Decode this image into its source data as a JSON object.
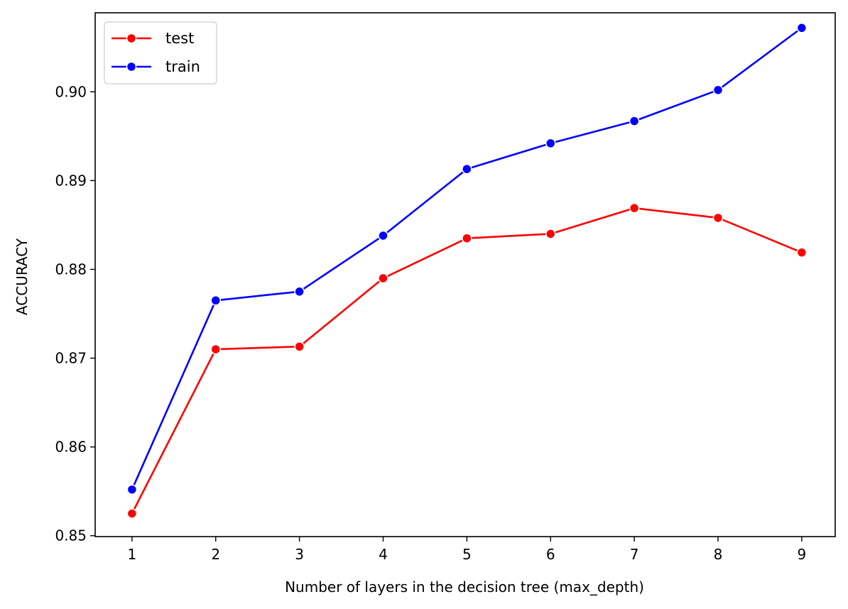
{
  "chart_data": {
    "type": "line",
    "title": "",
    "xlabel": "Number of layers in the decision tree (max_depth)",
    "ylabel": "ACCURACY",
    "x": [
      1,
      2,
      3,
      4,
      5,
      6,
      7,
      8,
      9
    ],
    "xticks": [
      "1",
      "2",
      "3",
      "4",
      "5",
      "6",
      "7",
      "8",
      "9"
    ],
    "xlim": [
      0.56,
      9.4
    ],
    "yticks": [
      "0.85",
      "0.86",
      "0.87",
      "0.88",
      "0.89",
      "0.90"
    ],
    "ytick_values": [
      0.85,
      0.86,
      0.87,
      0.88,
      0.89,
      0.9
    ],
    "ylim": [
      0.8499,
      0.9089
    ],
    "grid": false,
    "legend_position": "top-left",
    "series": [
      {
        "name": "test",
        "color": "#ff0000",
        "values": [
          0.8525,
          0.871,
          0.8713,
          0.879,
          0.8835,
          0.884,
          0.8869,
          0.8858,
          0.8819
        ]
      },
      {
        "name": "train",
        "color": "#0000ff",
        "values": [
          0.8552,
          0.8765,
          0.8775,
          0.8838,
          0.8913,
          0.8942,
          0.8967,
          0.9002,
          0.9072
        ]
      }
    ]
  }
}
